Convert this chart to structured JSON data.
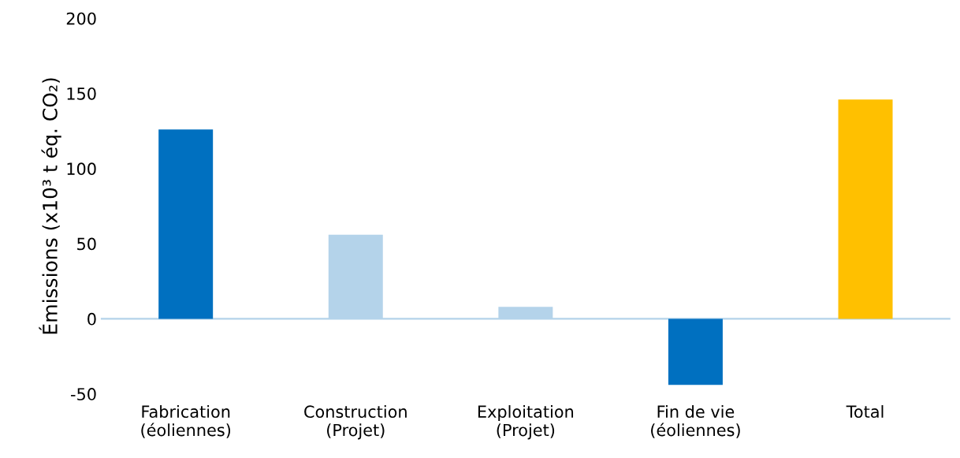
{
  "chart_data": {
    "type": "bar",
    "ylabel": "Émissions (x10³ t éq. CO₂)",
    "categories": [
      "Fabrication\n(éoliennes)",
      "Construction\n(Projet)",
      "Exploitation\n(Projet)",
      "Fin de vie\n(éoliennes)",
      "Total"
    ],
    "values": [
      126,
      56,
      8,
      -44,
      146
    ],
    "colors": [
      "#0070c0",
      "#b4d3ea",
      "#b4d3ea",
      "#0070c0",
      "#ffc000"
    ],
    "ylim": [
      -50,
      200
    ],
    "yticks": [
      -50,
      0,
      50,
      100,
      150,
      200
    ],
    "grid": false,
    "legend": false,
    "ref_lines": [
      {
        "axis": "y",
        "value": 0,
        "color": "#b4d3ea"
      }
    ]
  }
}
